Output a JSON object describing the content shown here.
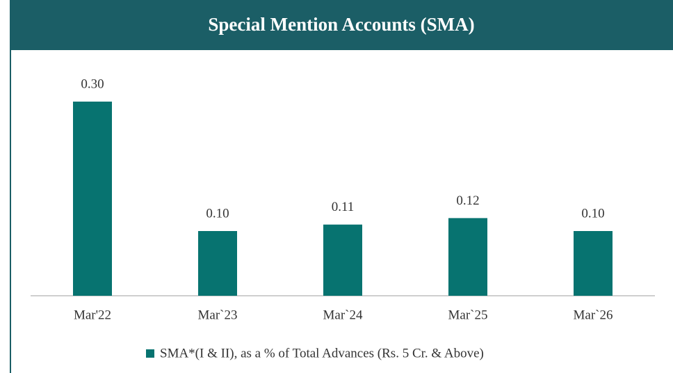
{
  "chart_data": {
    "type": "bar",
    "title": "Special Mention Accounts (SMA)",
    "categories": [
      "Mar'22",
      "Mar`23",
      "Mar`24",
      "Mar`25",
      "Mar`26"
    ],
    "series": [
      {
        "name": "SMA*(I & II), as a % of Total Advances (Rs. 5 Cr. & Above)",
        "color": "#077370",
        "values": [
          0.3,
          0.1,
          0.11,
          0.12,
          0.1
        ],
        "value_labels": [
          "0.30",
          "0.10",
          "0.11",
          "0.12",
          "0.10"
        ]
      }
    ],
    "legend": "bottom"
  }
}
